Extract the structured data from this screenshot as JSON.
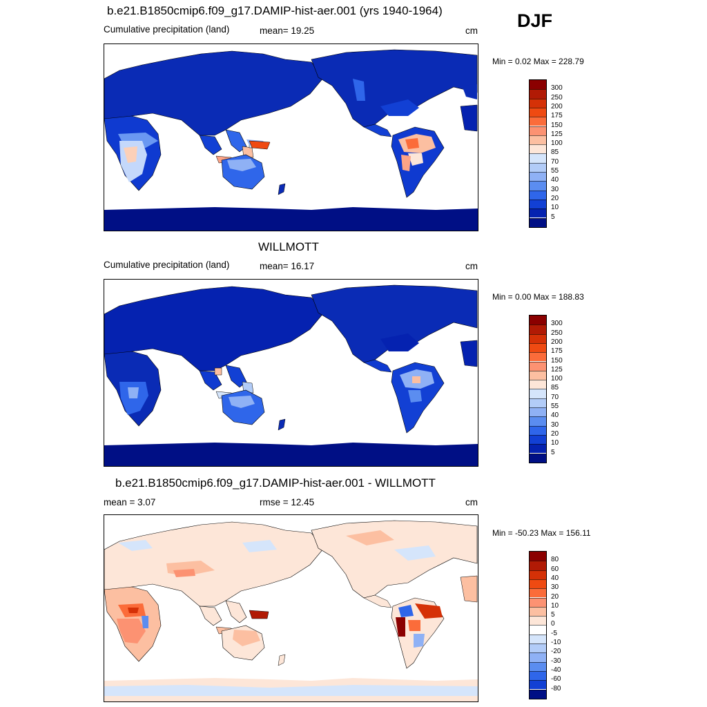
{
  "season": "DJF",
  "panels": [
    {
      "id": "model",
      "title": "b.e21.B1850cmip6.f09_g17.DAMIP-hist-aer.001 (yrs 1940-1964)",
      "left_label": "Cumulative precipitation (land)",
      "center_label": "mean=  19.25",
      "units": "cm",
      "minmax": "Min =   0.02 Max = 228.79",
      "colorbar": {
        "labels": [
          "300",
          "250",
          "200",
          "175",
          "150",
          "125",
          "100",
          "85",
          "70",
          "55",
          "40",
          "30",
          "20",
          "10",
          "5"
        ],
        "colors": [
          "#8b0000",
          "#b11a05",
          "#d53107",
          "#ef4a12",
          "#fb6c3a",
          "#fc9272",
          "#fcbfa1",
          "#fde6d8",
          "#d5e5fb",
          "#b2ccf8",
          "#8fb1f5",
          "#5b8df0",
          "#2f66ea",
          "#1240d4",
          "#0522b0",
          "#000f85"
        ]
      }
    },
    {
      "id": "obs",
      "title": "WILLMOTT",
      "left_label": "Cumulative precipitation (land)",
      "center_label": "mean=  16.17",
      "units": "cm",
      "minmax": "Min =   0.00 Max = 188.83",
      "colorbar": {
        "labels": [
          "300",
          "250",
          "200",
          "175",
          "150",
          "125",
          "100",
          "85",
          "70",
          "55",
          "40",
          "30",
          "20",
          "10",
          "5"
        ],
        "colors": [
          "#8b0000",
          "#b11a05",
          "#d53107",
          "#ef4a12",
          "#fb6c3a",
          "#fc9272",
          "#fcbfa1",
          "#fde6d8",
          "#d5e5fb",
          "#b2ccf8",
          "#8fb1f5",
          "#5b8df0",
          "#2f66ea",
          "#1240d4",
          "#0522b0",
          "#000f85"
        ]
      }
    },
    {
      "id": "diff",
      "title": "b.e21.B1850cmip6.f09_g17.DAMIP-hist-aer.001 - WILLMOTT",
      "left_label": "mean =   3.07",
      "center_label": "rmse =  12.45",
      "units": "cm",
      "minmax": "Min = -50.23 Max = 156.11",
      "colorbar": {
        "labels": [
          "80",
          "60",
          "40",
          "30",
          "20",
          "10",
          "5",
          "0",
          "-5",
          "-10",
          "-20",
          "-30",
          "-40",
          "-60",
          "-80"
        ],
        "colors": [
          "#8b0000",
          "#b11a05",
          "#d53107",
          "#ef4a12",
          "#fb6c3a",
          "#fc9272",
          "#fcbfa1",
          "#fde6d8",
          "#ffffff",
          "#d5e5fb",
          "#b2ccf8",
          "#8fb1f5",
          "#5b8df0",
          "#2f66ea",
          "#1240d4",
          "#000f85"
        ]
      }
    }
  ]
}
